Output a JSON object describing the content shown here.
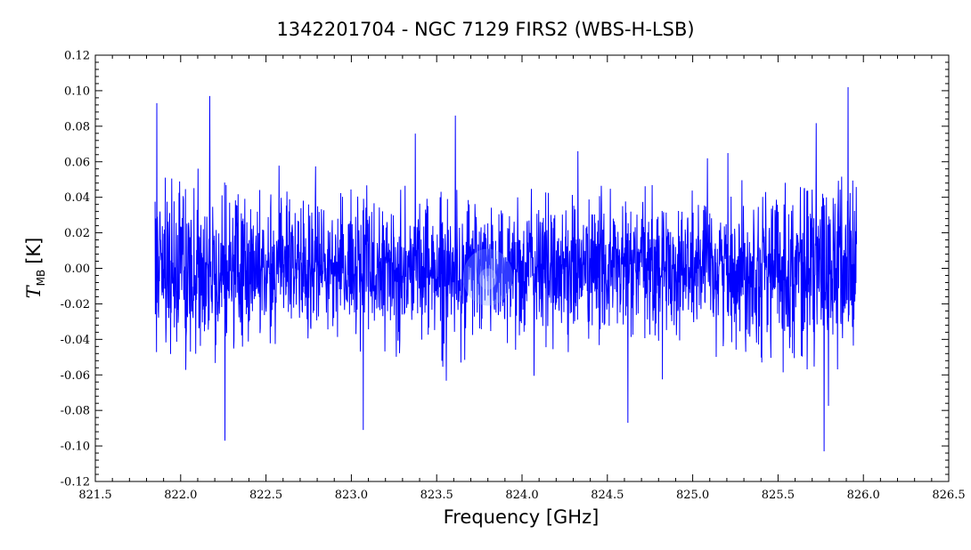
{
  "chart_data": {
    "type": "line",
    "title": "1342201704 - NGC 7129 FIRS2 (WBS-H-LSB)",
    "xlabel": "Frequency [GHz]",
    "ylabel_main": "T",
    "ylabel_sub": "MB",
    "ylabel_unit": "[K]",
    "xlim": [
      821.5,
      826.5
    ],
    "ylim": [
      -0.12,
      0.12
    ],
    "xticks": [
      821.5,
      822.0,
      822.5,
      823.0,
      823.5,
      824.0,
      824.5,
      825.0,
      825.5,
      826.0,
      826.5
    ],
    "xtick_labels": [
      "821.5",
      "822.0",
      "822.5",
      "823.0",
      "823.5",
      "824.0",
      "824.5",
      "825.0",
      "825.5",
      "826.0",
      "826.5"
    ],
    "yticks": [
      -0.12,
      -0.1,
      -0.08,
      -0.06,
      -0.04,
      -0.02,
      0.0,
      0.02,
      0.04,
      0.06,
      0.08,
      0.1,
      0.12
    ],
    "ytick_labels": [
      "-0.12",
      "-0.10",
      "-0.08",
      "-0.06",
      "-0.04",
      "-0.02",
      "0.00",
      "0.02",
      "0.04",
      "0.06",
      "0.08",
      "0.10",
      "0.12"
    ],
    "grid": false,
    "series": [
      {
        "color": "#0000ff",
        "x_start": 821.85,
        "x_end": 825.96,
        "n_points": 2400,
        "noise_rms": 0.025,
        "notable_peaks": [
          {
            "x": 821.86,
            "y": 0.093
          },
          {
            "x": 822.17,
            "y": 0.097
          },
          {
            "x": 823.61,
            "y": 0.086
          },
          {
            "x": 825.91,
            "y": 0.102
          }
        ],
        "notable_troughs": [
          {
            "x": 822.26,
            "y": -0.097
          },
          {
            "x": 823.07,
            "y": -0.091
          },
          {
            "x": 824.62,
            "y": -0.087
          },
          {
            "x": 825.77,
            "y": -0.103
          }
        ]
      }
    ]
  }
}
